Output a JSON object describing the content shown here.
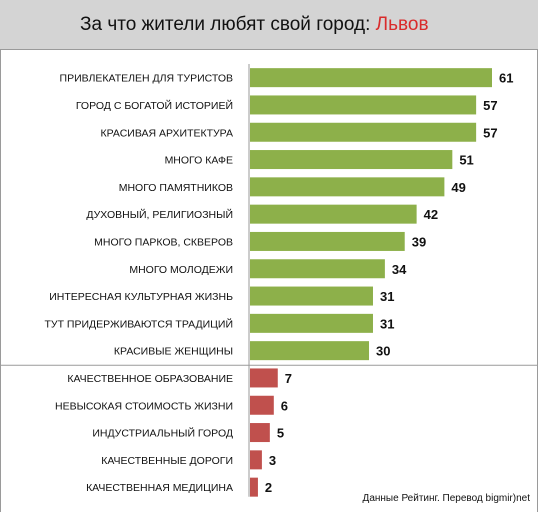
{
  "header": {
    "title": "За что жители любят свой город: ",
    "city": "Львов",
    "city_color": "#d92b2b"
  },
  "source": "Данные Рейтинг. Перевод bigmir)net",
  "colors": {
    "positive_bar": "#8db04a",
    "negative_bar": "#c0504d"
  },
  "chart_data": {
    "type": "bar",
    "orientation": "horizontal",
    "categories": [
      "ПРИВЛЕКАТЕЛЕН ДЛЯ ТУРИСТОВ",
      "ГОРОД С БОГАТОЙ ИСТОРИЕЙ",
      "КРАСИВАЯ АРХИТЕКТУРА",
      "МНОГО КАФЕ",
      "МНОГО ПАМЯТНИКОВ",
      "ДУХОВНЫЙ, РЕЛИГИОЗНЫЙ",
      "МНОГО ПАРКОВ, СКВЕРОВ",
      "МНОГО МОЛОДЕЖИ",
      "ИНТЕРЕСНАЯ КУЛЬТУРНАЯ ЖИЗНЬ",
      "ТУТ ПРИДЕРЖИВАЮТСЯ ТРАДИЦИЙ",
      "КРАСИВЫЕ ЖЕНЩИНЫ",
      "КАЧЕСТВЕННОЕ ОБРАЗОВАНИЕ",
      "НЕВЫСОКАЯ СТОИМОСТЬ ЖИЗНИ",
      "ИНДУСТРИАЛЬНЫЙ ГОРОД",
      "КАЧЕСТВЕННЫЕ ДОРОГИ",
      "КАЧЕСТВЕННАЯ МЕДИЦИНА"
    ],
    "values": [
      61,
      57,
      57,
      51,
      49,
      42,
      39,
      34,
      31,
      31,
      30,
      7,
      6,
      5,
      3,
      2
    ],
    "groups": [
      "green",
      "green",
      "green",
      "green",
      "green",
      "green",
      "green",
      "green",
      "green",
      "green",
      "green",
      "red",
      "red",
      "red",
      "red",
      "red"
    ],
    "xlim": [
      0,
      61
    ],
    "grid": false,
    "legend": "none"
  }
}
